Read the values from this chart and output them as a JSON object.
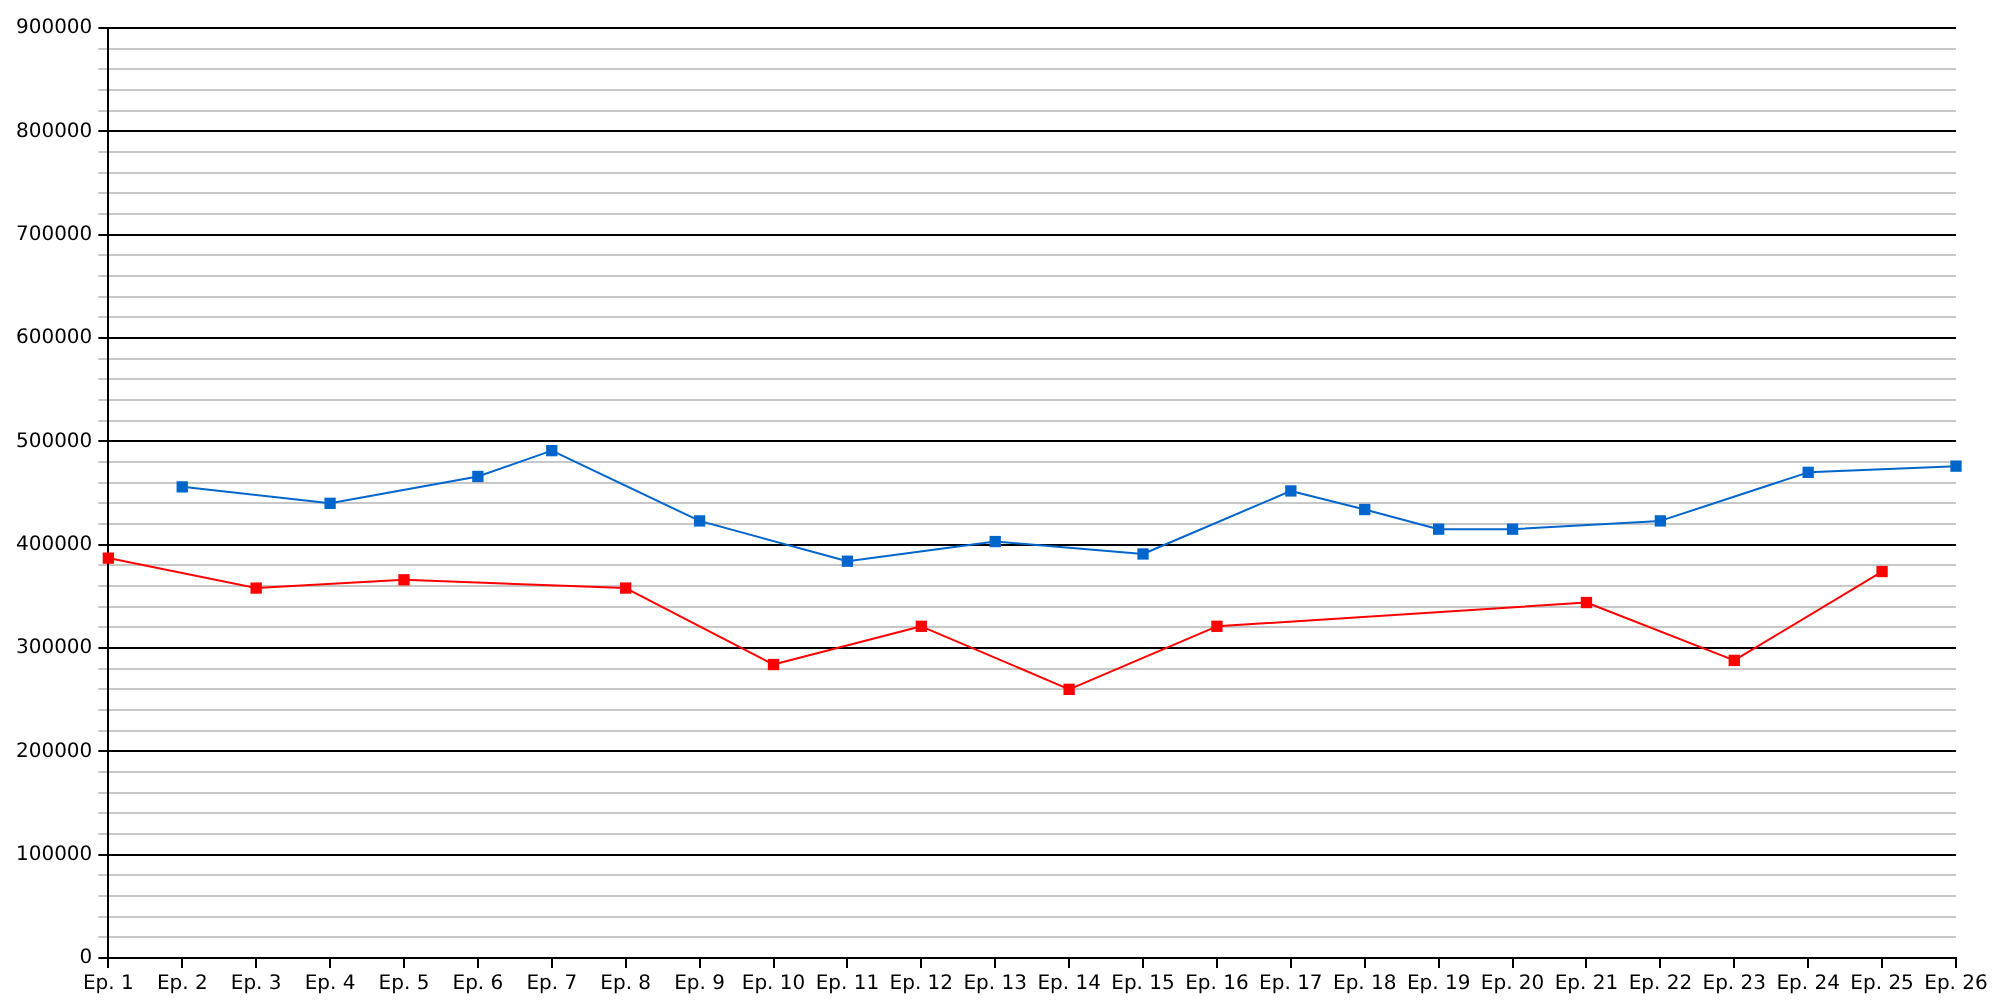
{
  "chart_data": {
    "type": "line",
    "categories": [
      "Ep. 1",
      "Ep. 2",
      "Ep. 3",
      "Ep. 4",
      "Ep. 5",
      "Ep. 6",
      "Ep. 7",
      "Ep. 8",
      "Ep. 9",
      "Ep. 10",
      "Ep. 11",
      "Ep. 12",
      "Ep. 13",
      "Ep. 14",
      "Ep. 15",
      "Ep. 16",
      "Ep. 17",
      "Ep. 18",
      "Ep. 19",
      "Ep. 20",
      "Ep. 21",
      "Ep. 22",
      "Ep. 23",
      "Ep. 24",
      "Ep. 25",
      "Ep. 26"
    ],
    "series": [
      {
        "color": "#0066cc",
        "values": [
          null,
          456000,
          null,
          440000,
          null,
          466000,
          491000,
          null,
          423000,
          null,
          384000,
          null,
          403000,
          null,
          391000,
          null,
          452000,
          434000,
          415000,
          415000,
          null,
          423000,
          null,
          470000,
          null,
          476000
        ]
      },
      {
        "color": "#ff0000",
        "values": [
          387000,
          null,
          358000,
          null,
          366000,
          null,
          null,
          358000,
          null,
          284000,
          null,
          321000,
          null,
          260000,
          null,
          321000,
          null,
          null,
          null,
          null,
          344000,
          null,
          288000,
          null,
          374000,
          null
        ]
      }
    ],
    "ylim": [
      0,
      900000
    ],
    "yticks": [
      0,
      {
        "value": 20000,
        "label": null
      },
      {
        "value": 40000,
        "label": null
      },
      {
        "value": 60000,
        "label": null
      },
      {
        "value": 80000,
        "label": null
      },
      100000,
      {
        "value": 120000,
        "label": null
      },
      {
        "value": 140000,
        "label": null
      },
      {
        "value": 160000,
        "label": null
      },
      {
        "value": 180000,
        "label": null
      },
      200000,
      {
        "value": 220000,
        "label": null
      },
      {
        "value": 240000,
        "label": null
      },
      {
        "value": 260000,
        "label": null
      },
      {
        "value": 280000,
        "label": null
      },
      300000,
      {
        "value": 320000,
        "label": null
      },
      {
        "value": 340000,
        "label": null
      },
      {
        "value": 360000,
        "label": null
      },
      {
        "value": 380000,
        "label": null
      },
      400000,
      {
        "value": 420000,
        "label": null
      },
      {
        "value": 440000,
        "label": null
      },
      {
        "value": 460000,
        "label": null
      },
      {
        "value": 480000,
        "label": null
      },
      500000,
      {
        "value": 520000,
        "label": null
      },
      {
        "value": 540000,
        "label": null
      },
      {
        "value": 560000,
        "label": null
      },
      {
        "value": 580000,
        "label": null
      },
      600000,
      {
        "value": 620000,
        "label": null
      },
      {
        "value": 640000,
        "label": null
      },
      {
        "value": 660000,
        "label": null
      },
      {
        "value": 680000,
        "label": null
      },
      700000,
      {
        "value": 720000,
        "label": null
      },
      {
        "value": 740000,
        "label": null
      },
      {
        "value": 760000,
        "label": null
      },
      {
        "value": 780000,
        "label": null
      },
      800000,
      {
        "value": 820000,
        "label": null
      },
      {
        "value": 840000,
        "label": null
      },
      {
        "value": 860000,
        "label": null
      },
      {
        "value": 880000,
        "label": null
      },
      900000
    ],
    "grid": "y",
    "legend": false,
    "marker": "square",
    "line_style": "solid"
  }
}
